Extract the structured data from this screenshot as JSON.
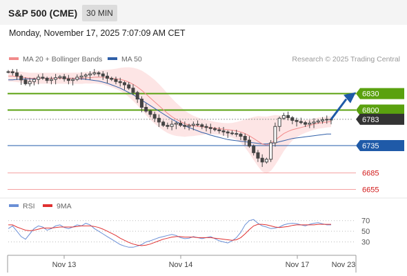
{
  "header": {
    "title": "S&P 500 (CME)",
    "timeframe": "30 MIN"
  },
  "datetime": "Monday, November 17, 2025 7:07:09 AM CET",
  "legend": {
    "ma20_label": "MA 20 + Bollinger Bands",
    "ma50_label": "MA 50",
    "research": "Research © 2025 Trading Central",
    "rsi_label": "RSI",
    "rsi_ma_label": "9MA"
  },
  "colors": {
    "ma20": "#f28b8b",
    "ma50": "#2f5fa8",
    "bollinger": "#fde0e0",
    "resistance": "#5aa10f",
    "pivot": "#1f5aa8",
    "support": "#f4a0a0",
    "support_label": "#d21a1a",
    "current": "#333333",
    "candle": "#444444",
    "rsi": "#6a8fd6",
    "rsi_ma": "#e03030",
    "arrow": "#1f5aa8"
  },
  "chart_data": [
    {
      "type": "candlestick",
      "x_ticks": [
        "Nov 13",
        "Nov 14",
        "Nov 17",
        "Nov 23"
      ],
      "ylim": [
        6648,
        6880
      ],
      "levels": [
        {
          "value": 6830,
          "label": "6830",
          "kind": "resistance"
        },
        {
          "value": 6800,
          "label": "6800",
          "kind": "resistance"
        },
        {
          "value": 6783,
          "label": "6783",
          "kind": "current"
        },
        {
          "value": 6735,
          "label": "6735",
          "kind": "pivot"
        },
        {
          "value": 6685,
          "label": "6685",
          "kind": "support"
        },
        {
          "value": 6655,
          "label": "6655",
          "kind": "support"
        }
      ],
      "close": [
        6870,
        6868,
        6862,
        6855,
        6848,
        6852,
        6856,
        6860,
        6858,
        6854,
        6856,
        6859,
        6861,
        6857,
        6854,
        6856,
        6860,
        6862,
        6864,
        6866,
        6868,
        6866,
        6862,
        6858,
        6856,
        6852,
        6850,
        6846,
        6840,
        6832,
        6820,
        6805,
        6798,
        6792,
        6785,
        6778,
        6772,
        6770,
        6774,
        6776,
        6772,
        6770,
        6772,
        6774,
        6773,
        6770,
        6768,
        6766,
        6764,
        6762,
        6760,
        6758,
        6757,
        6756,
        6752,
        6745,
        6734,
        6722,
        6712,
        6705,
        6710,
        6740,
        6770,
        6785,
        6790,
        6786,
        6781,
        6779,
        6777,
        6774,
        6776,
        6778,
        6780,
        6782,
        6783,
        6783
      ],
      "ma20": [
        6862,
        6862,
        6861,
        6860,
        6859,
        6858,
        6858,
        6858,
        6858,
        6858,
        6858,
        6858,
        6858,
        6858,
        6858,
        6858,
        6858,
        6858,
        6859,
        6859,
        6860,
        6860,
        6860,
        6859,
        6858,
        6857,
        6856,
        6854,
        6851,
        6847,
        6842,
        6836,
        6829,
        6822,
        6815,
        6808,
        6801,
        6794,
        6788,
        6783,
        6779,
        6775,
        6773,
        6771,
        6770,
        6769,
        6769,
        6768,
        6767,
        6766,
        6765,
        6764,
        6763,
        6762,
        6760,
        6757,
        6753,
        6748,
        6743,
        6738,
        6736,
        6739,
        6745,
        6751,
        6757,
        6761,
        6764,
        6766,
        6768,
        6770,
        6772,
        6774,
        6776,
        6777,
        6778,
        6779
      ],
      "ma50": [
        6855,
        6855,
        6856,
        6856,
        6857,
        6857,
        6857,
        6858,
        6858,
        6858,
        6858,
        6858,
        6858,
        6858,
        6858,
        6858,
        6857,
        6857,
        6856,
        6855,
        6854,
        6853,
        6851,
        6849,
        6846,
        6843,
        6840,
        6836,
        6832,
        6828,
        6823,
        6818,
        6813,
        6808,
        6803,
        6798,
        6793,
        6788,
        6783,
        6779,
        6775,
        6771,
        6768,
        6765,
        6762,
        6759,
        6757,
        6754,
        6752,
        6750,
        6748,
        6746,
        6745,
        6744,
        6743,
        6742,
        6741,
        6740,
        6739,
        6738,
        6738,
        6739,
        6740,
        6742,
        6744,
        6746,
        6748,
        6749,
        6750,
        6751,
        6752,
        6753,
        6754,
        6755,
        6756,
        6756
      ]
    },
    {
      "type": "line",
      "title": "RSI",
      "ylim": [
        10,
        80
      ],
      "y_ticks": [
        70,
        50,
        30
      ],
      "series": [
        {
          "name": "RSI",
          "values": [
            55,
            60,
            50,
            40,
            35,
            45,
            55,
            60,
            58,
            52,
            55,
            60,
            62,
            57,
            55,
            58,
            62,
            60,
            65,
            62,
            55,
            50,
            45,
            40,
            35,
            30,
            25,
            22,
            20,
            20,
            22,
            25,
            30,
            32,
            35,
            38,
            40,
            42,
            44,
            42,
            38,
            36,
            37,
            40,
            38,
            36,
            38,
            40,
            36,
            32,
            30,
            28,
            32,
            38,
            48,
            62,
            70,
            72,
            65,
            60,
            58,
            55,
            56,
            58,
            62,
            64,
            65,
            64,
            62,
            60,
            63,
            65,
            66,
            64,
            62,
            62
          ]
        },
        {
          "name": "9MA",
          "values": [
            62,
            62,
            58,
            55,
            52,
            51,
            52,
            54,
            56,
            56,
            56,
            57,
            58,
            58,
            58,
            58,
            59,
            60,
            60,
            60,
            59,
            57,
            54,
            50,
            46,
            42,
            37,
            33,
            29,
            26,
            24,
            23,
            24,
            26,
            29,
            32,
            35,
            37,
            39,
            40,
            40,
            39,
            39,
            39,
            38,
            38,
            38,
            38,
            37,
            36,
            35,
            34,
            33,
            34,
            38,
            45,
            53,
            60,
            63,
            63,
            62,
            60,
            58,
            57,
            58,
            59,
            61,
            62,
            62,
            62,
            62,
            62,
            63,
            63,
            63,
            63
          ]
        }
      ]
    }
  ]
}
